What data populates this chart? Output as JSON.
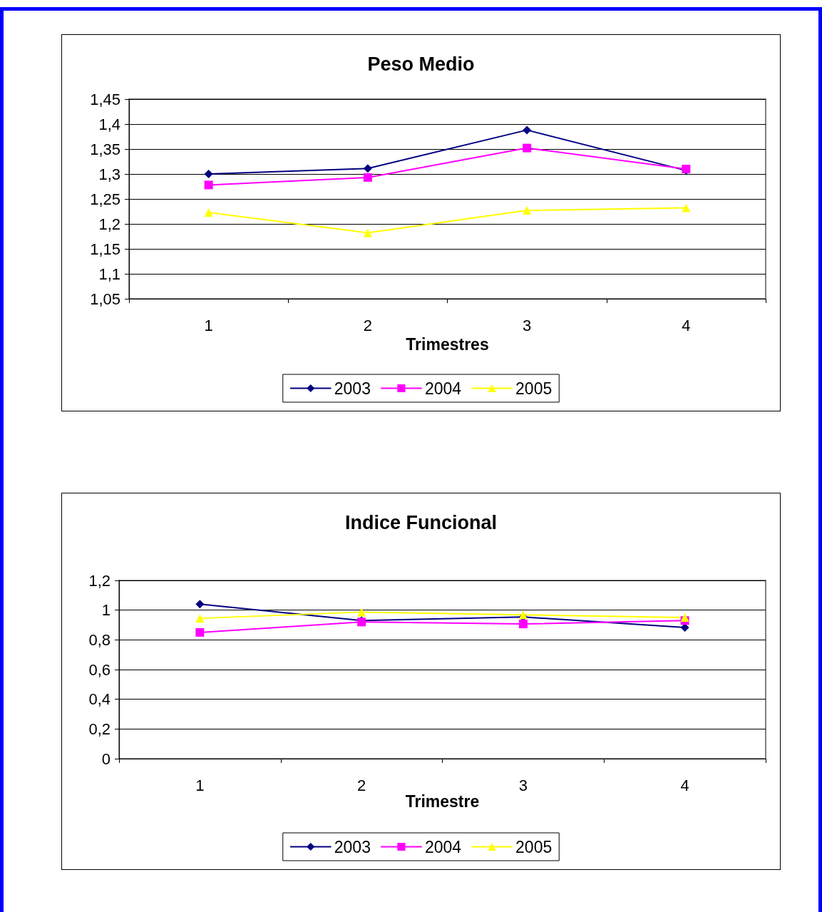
{
  "chart_data": [
    {
      "type": "line",
      "title": "Peso Medio",
      "xlabel": "Trimestres",
      "categories": [
        "1",
        "2",
        "3",
        "4"
      ],
      "ylim": [
        1.05,
        1.45
      ],
      "yticks": [
        {
          "value": 1.05,
          "label": "1,05"
        },
        {
          "value": 1.1,
          "label": "1,1"
        },
        {
          "value": 1.15,
          "label": "1,15"
        },
        {
          "value": 1.2,
          "label": "1,2"
        },
        {
          "value": 1.25,
          "label": "1,25"
        },
        {
          "value": 1.3,
          "label": "1,3"
        },
        {
          "value": 1.35,
          "label": "1,35"
        },
        {
          "value": 1.4,
          "label": "1,4"
        },
        {
          "value": 1.45,
          "label": "1,45"
        }
      ],
      "grid": "y",
      "legend": "bottom",
      "series": [
        {
          "name": "2003",
          "color": "#000080",
          "marker": "diamond",
          "values": [
            1.3,
            1.311,
            1.388,
            1.307
          ]
        },
        {
          "name": "2004",
          "color": "#ff00ff",
          "marker": "square",
          "values": [
            1.278,
            1.293,
            1.352,
            1.31
          ]
        },
        {
          "name": "2005",
          "color": "#ffff00",
          "marker": "triangle",
          "values": [
            1.223,
            1.182,
            1.227,
            1.232
          ]
        }
      ]
    },
    {
      "type": "line",
      "title": "Indice Funcional",
      "xlabel": "Trimestre",
      "categories": [
        "1",
        "2",
        "3",
        "4"
      ],
      "ylim": [
        0,
        1.2
      ],
      "yticks": [
        0,
        {
          "value": 0.2,
          "label": "0,2"
        },
        {
          "value": 0.4,
          "label": "0,4"
        },
        {
          "value": 0.6,
          "label": "0,6"
        },
        {
          "value": 0.8,
          "label": "0,8"
        },
        1,
        {
          "value": 1.2,
          "label": "1,2"
        }
      ],
      "grid": "y",
      "legend": "bottom",
      "series": [
        {
          "name": "2003",
          "color": "#000080",
          "marker": "diamond",
          "values": [
            1.04,
            0.93,
            0.954,
            0.883
          ]
        },
        {
          "name": "2004",
          "color": "#ff00ff",
          "marker": "square",
          "values": [
            0.85,
            0.92,
            0.907,
            0.93
          ]
        },
        {
          "name": "2005",
          "color": "#ffff00",
          "marker": "triangle",
          "values": [
            0.945,
            0.987,
            0.968,
            0.95
          ]
        }
      ]
    }
  ]
}
